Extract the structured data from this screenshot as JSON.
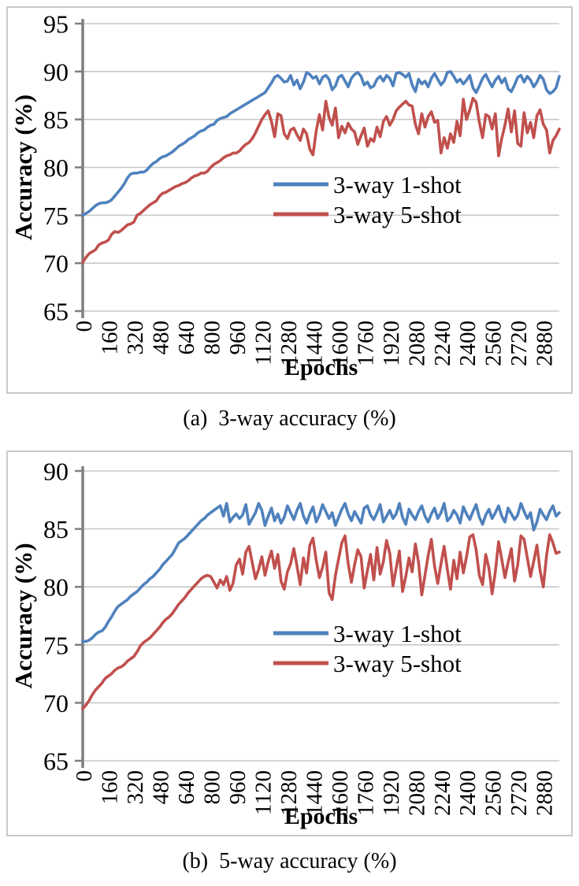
{
  "figure": {
    "background": "#FFFFFF",
    "captions": {
      "a": "(a)  3-way accuracy (%)",
      "b": "(b)  5-way accuracy (%)"
    }
  },
  "chart_data": [
    {
      "id": "chart-a",
      "type": "line",
      "caption": "(a)  3-way accuracy (%)",
      "xlabel": "Epochs",
      "ylabel": "Accuracy (%)",
      "ylim": [
        65,
        95
      ],
      "yticks": [
        95,
        90,
        85,
        80,
        75,
        70,
        65
      ],
      "xticks": [
        0,
        160,
        320,
        480,
        640,
        800,
        960,
        1120,
        1280,
        1440,
        1600,
        1760,
        1920,
        2080,
        2240,
        2400,
        2560,
        2720,
        2880
      ],
      "x_start": 0,
      "x_step": 20,
      "grid": true,
      "grid_color": "#c8c8c8",
      "axis_color": "#7f7f7f",
      "legend": {
        "position": "inside-center-right",
        "entries": [
          "3-way 1-shot",
          "3-way 5-shot"
        ]
      },
      "series": [
        {
          "name": "3-way 1-shot",
          "color": "#4F81BD",
          "values": [
            75.0,
            75.2,
            75.4,
            75.7,
            76.0,
            76.2,
            76.3,
            76.3,
            76.4,
            76.6,
            77.0,
            77.4,
            77.8,
            78.3,
            78.9,
            79.3,
            79.4,
            79.4,
            79.5,
            79.5,
            79.7,
            80.1,
            80.4,
            80.6,
            80.9,
            81.1,
            81.2,
            81.4,
            81.6,
            81.9,
            82.2,
            82.4,
            82.6,
            82.9,
            83.1,
            83.3,
            83.6,
            83.8,
            83.9,
            84.2,
            84.4,
            84.5,
            84.9,
            85.1,
            85.2,
            85.3,
            85.6,
            85.8,
            86.0,
            86.2,
            86.4,
            86.6,
            86.8,
            87.0,
            87.2,
            87.4,
            87.6,
            87.8,
            88.3,
            88.8,
            89.4,
            89.6,
            89.3,
            88.9,
            89.0,
            89.6,
            88.6,
            89.1,
            88.2,
            88.9,
            89.9,
            89.7,
            89.3,
            89.5,
            88.7,
            89.4,
            89.6,
            89.2,
            88.1,
            88.5,
            89.4,
            89.6,
            89.0,
            88.4,
            89.3,
            89.7,
            89.9,
            89.5,
            88.6,
            88.9,
            88.3,
            88.5,
            89.2,
            89.5,
            89.0,
            89.6,
            89.3,
            88.5,
            89.8,
            89.9,
            89.7,
            89.4,
            89.8,
            88.6,
            87.9,
            89.2,
            88.7,
            89.0,
            88.4,
            89.3,
            89.8,
            89.2,
            88.6,
            89.0,
            89.9,
            90.0,
            89.5,
            88.9,
            89.2,
            88.7,
            89.1,
            89.6,
            88.3,
            87.8,
            88.5,
            89.3,
            89.7,
            89.0,
            88.4,
            89.1,
            89.5,
            88.8,
            89.3,
            88.2,
            87.9,
            88.6,
            89.4,
            89.6,
            88.9,
            89.5,
            89.1,
            88.4,
            88.9,
            89.6,
            89.2,
            88.1,
            87.7,
            87.9,
            88.3,
            89.5
          ]
        },
        {
          "name": "3-way 5-shot",
          "color": "#C0504D",
          "values": [
            70.1,
            70.6,
            71.0,
            71.2,
            71.4,
            71.9,
            72.1,
            72.2,
            72.4,
            73.0,
            73.3,
            73.2,
            73.4,
            73.7,
            74.0,
            74.1,
            74.3,
            75.0,
            75.2,
            75.5,
            75.8,
            76.1,
            76.3,
            76.5,
            77.0,
            77.3,
            77.4,
            77.6,
            77.8,
            78.0,
            78.1,
            78.3,
            78.4,
            78.6,
            78.9,
            79.1,
            79.2,
            79.4,
            79.4,
            79.6,
            80.0,
            80.3,
            80.5,
            80.7,
            81.0,
            81.2,
            81.3,
            81.5,
            81.5,
            81.7,
            82.1,
            82.4,
            82.6,
            83.0,
            83.6,
            84.3,
            85.0,
            85.5,
            85.9,
            84.8,
            83.2,
            85.6,
            85.4,
            83.5,
            83.0,
            83.9,
            84.1,
            83.4,
            82.8,
            84.0,
            83.5,
            81.9,
            81.3,
            83.8,
            85.5,
            83.9,
            86.9,
            85.2,
            84.4,
            86.2,
            83.1,
            84.3,
            83.6,
            84.6,
            84.0,
            83.7,
            82.4,
            83.3,
            84.1,
            82.2,
            83.0,
            82.7,
            84.2,
            83.2,
            84.8,
            85.3,
            84.4,
            85.0,
            85.9,
            86.3,
            86.6,
            86.9,
            86.5,
            86.4,
            84.5,
            83.5,
            85.6,
            84.2,
            85.3,
            85.8,
            84.7,
            84.9,
            81.5,
            83.1,
            82.0,
            83.5,
            82.6,
            84.8,
            83.3,
            87.1,
            85.0,
            86.0,
            87.2,
            86.8,
            84.7,
            83.1,
            85.5,
            85.3,
            84.0,
            85.6,
            81.2,
            83.0,
            84.4,
            86.1,
            83.7,
            85.9,
            82.5,
            82.2,
            85.7,
            83.6,
            84.7,
            83.1,
            85.4,
            86.0,
            84.5,
            83.9,
            81.5,
            82.8,
            83.3,
            84.0
          ]
        }
      ]
    },
    {
      "id": "chart-b",
      "type": "line",
      "caption": "(b)  5-way accuracy (%)",
      "xlabel": "Epochs",
      "ylabel": "Accuracy (%)",
      "ylim": [
        65,
        90
      ],
      "yticks": [
        90,
        85,
        80,
        75,
        70,
        65
      ],
      "xticks": [
        0,
        160,
        320,
        480,
        640,
        800,
        960,
        1120,
        1280,
        1440,
        1600,
        1760,
        1920,
        2080,
        2240,
        2400,
        2560,
        2720,
        2880
      ],
      "x_start": 0,
      "x_step": 20,
      "grid": true,
      "grid_color": "#c8c8c8",
      "axis_color": "#7f7f7f",
      "legend": {
        "position": "inside-center-right",
        "entries": [
          "3-way 1-shot",
          "3-way 5-shot"
        ]
      },
      "series": [
        {
          "name": "3-way 1-shot",
          "color": "#4F81BD",
          "values": [
            75.3,
            75.3,
            75.4,
            75.6,
            75.9,
            76.1,
            76.2,
            76.5,
            77.0,
            77.4,
            77.9,
            78.3,
            78.5,
            78.7,
            78.9,
            79.2,
            79.4,
            79.6,
            79.9,
            80.2,
            80.4,
            80.7,
            80.9,
            81.2,
            81.5,
            81.9,
            82.2,
            82.5,
            82.8,
            83.3,
            83.8,
            84.0,
            84.2,
            84.5,
            84.8,
            85.1,
            85.4,
            85.7,
            85.9,
            86.2,
            86.4,
            86.6,
            86.8,
            87.0,
            86.1,
            87.2,
            85.6,
            86.0,
            86.3,
            85.9,
            86.2,
            87.1,
            85.4,
            85.9,
            86.4,
            87.2,
            86.6,
            85.3,
            86.1,
            86.8,
            85.7,
            86.3,
            85.5,
            86.0,
            87.0,
            86.4,
            85.8,
            86.6,
            87.2,
            86.1,
            85.5,
            86.3,
            86.9,
            85.6,
            86.2,
            87.1,
            86.5,
            85.9,
            86.4,
            85.3,
            86.0,
            86.7,
            87.2,
            86.3,
            85.7,
            86.5,
            86.0,
            85.5,
            86.8,
            87.0,
            86.2,
            85.8,
            86.4,
            87.1,
            85.6,
            86.1,
            86.6,
            85.9,
            86.3,
            87.2,
            86.0,
            85.4,
            86.7,
            86.2,
            85.8,
            86.5,
            87.0,
            86.1,
            85.6,
            86.3,
            86.8,
            85.9,
            86.4,
            87.2,
            85.7,
            86.0,
            86.6,
            86.2,
            85.5,
            86.9,
            86.3,
            85.8,
            86.5,
            87.1,
            86.0,
            85.4,
            86.2,
            86.7,
            85.9,
            86.4,
            87.0,
            86.1,
            85.6,
            86.8,
            86.3,
            85.8,
            86.2,
            87.2,
            86.5,
            85.9,
            86.4,
            84.9,
            85.6,
            86.7,
            86.2,
            85.8,
            86.5,
            87.0,
            86.1,
            86.4
          ]
        },
        {
          "name": "3-way 5-shot",
          "color": "#C0504D",
          "values": [
            69.5,
            69.8,
            70.2,
            70.7,
            71.1,
            71.4,
            71.7,
            72.1,
            72.3,
            72.5,
            72.8,
            73.0,
            73.1,
            73.3,
            73.6,
            73.8,
            74.0,
            74.4,
            74.9,
            75.2,
            75.4,
            75.6,
            75.9,
            76.2,
            76.5,
            76.9,
            77.2,
            77.4,
            77.7,
            78.1,
            78.5,
            78.8,
            79.1,
            79.5,
            79.8,
            80.1,
            80.4,
            80.7,
            80.9,
            81.0,
            80.9,
            80.4,
            79.9,
            80.6,
            80.2,
            80.9,
            79.7,
            80.3,
            81.9,
            82.4,
            81.1,
            83.0,
            83.5,
            82.1,
            80.7,
            81.5,
            82.6,
            81.0,
            82.2,
            83.1,
            81.6,
            82.8,
            80.5,
            79.8,
            81.3,
            82.0,
            83.3,
            81.8,
            80.2,
            82.5,
            81.2,
            83.6,
            84.2,
            82.3,
            80.8,
            81.7,
            83.0,
            79.5,
            78.9,
            81.0,
            82.4,
            83.8,
            84.4,
            82.0,
            80.4,
            81.9,
            83.2,
            82.6,
            79.9,
            81.4,
            82.8,
            80.6,
            83.4,
            81.1,
            82.2,
            84.0,
            82.9,
            80.1,
            81.6,
            83.1,
            79.6,
            80.9,
            82.5,
            81.3,
            83.7,
            82.1,
            79.3,
            81.0,
            82.7,
            84.1,
            81.8,
            80.3,
            82.0,
            83.5,
            81.5,
            79.8,
            82.3,
            80.7,
            83.0,
            81.2,
            82.6,
            84.3,
            84.5,
            83.2,
            81.0,
            80.2,
            82.8,
            81.6,
            79.4,
            81.3,
            83.9,
            82.4,
            80.8,
            82.1,
            83.3,
            80.5,
            81.9,
            84.4,
            84.1,
            82.5,
            80.9,
            82.2,
            83.6,
            81.4,
            80.0,
            82.7,
            84.5,
            83.8,
            82.9,
            83.0
          ]
        }
      ]
    }
  ]
}
